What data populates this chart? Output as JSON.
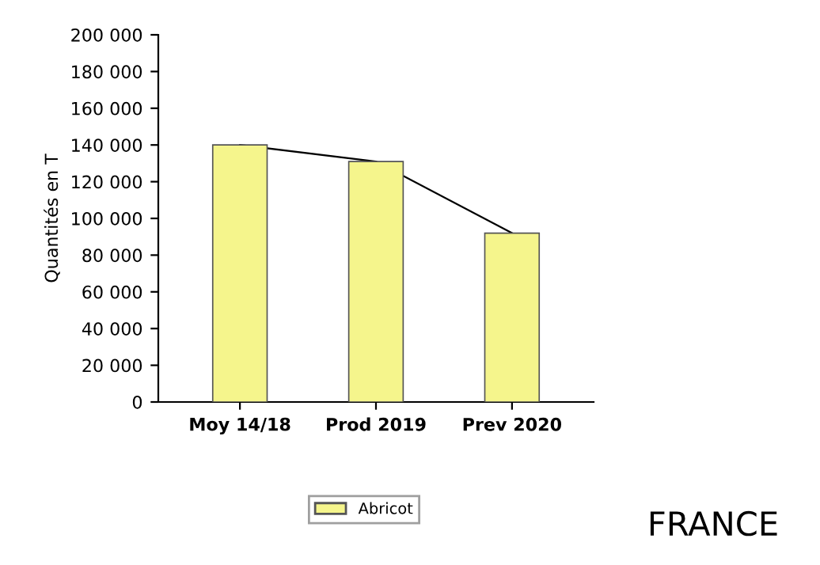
{
  "chart_data": {
    "type": "bar",
    "ylabel": "Quantités en T",
    "categories": [
      "Moy 14/18",
      "Prod 2019",
      "Prev 2020"
    ],
    "series": [
      {
        "name": "Abricot",
        "color": "#f5f58c",
        "values": [
          140000,
          131000,
          92000
        ]
      },
      {
        "type": "line",
        "color": "#000000",
        "values": [
          140000,
          131000,
          92000
        ]
      }
    ],
    "ylim": [
      0,
      200000
    ],
    "yticks": [
      {
        "value": 0,
        "label": "0"
      },
      {
        "value": 20000,
        "label": "20 000"
      },
      {
        "value": 40000,
        "label": "40 000"
      },
      {
        "value": 60000,
        "label": "60 000"
      },
      {
        "value": 80000,
        "label": "80 000"
      },
      {
        "value": 100000,
        "label": "100 000"
      },
      {
        "value": 120000,
        "label": "120 000"
      },
      {
        "value": 140000,
        "label": "140 000"
      },
      {
        "value": 160000,
        "label": "160 000"
      },
      {
        "value": 180000,
        "label": "180 000"
      },
      {
        "value": 200000,
        "label": "200 000"
      }
    ],
    "legend": "bottom",
    "grid": false,
    "annotations": [
      "FRANCE"
    ]
  }
}
